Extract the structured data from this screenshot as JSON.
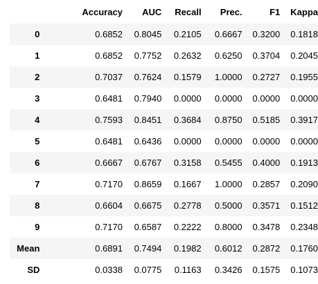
{
  "table": {
    "columns": [
      "",
      "Accuracy",
      "AUC",
      "Recall",
      "Prec.",
      "F1",
      "Kappa"
    ],
    "rows": [
      {
        "index": "0",
        "values": [
          "0.6852",
          "0.8045",
          "0.2105",
          "0.6667",
          "0.3200",
          "0.1818"
        ]
      },
      {
        "index": "1",
        "values": [
          "0.6852",
          "0.7752",
          "0.2632",
          "0.6250",
          "0.3704",
          "0.2045"
        ]
      },
      {
        "index": "2",
        "values": [
          "0.7037",
          "0.7624",
          "0.1579",
          "1.0000",
          "0.2727",
          "0.1955"
        ]
      },
      {
        "index": "3",
        "values": [
          "0.6481",
          "0.7940",
          "0.0000",
          "0.0000",
          "0.0000",
          "0.0000"
        ]
      },
      {
        "index": "4",
        "values": [
          "0.7593",
          "0.8451",
          "0.3684",
          "0.8750",
          "0.5185",
          "0.3917"
        ]
      },
      {
        "index": "5",
        "values": [
          "0.6481",
          "0.6436",
          "0.0000",
          "0.0000",
          "0.0000",
          "0.0000"
        ]
      },
      {
        "index": "6",
        "values": [
          "0.6667",
          "0.6767",
          "0.3158",
          "0.5455",
          "0.4000",
          "0.1913"
        ]
      },
      {
        "index": "7",
        "values": [
          "0.7170",
          "0.8659",
          "0.1667",
          "1.0000",
          "0.2857",
          "0.2090"
        ]
      },
      {
        "index": "8",
        "values": [
          "0.6604",
          "0.6675",
          "0.2778",
          "0.5000",
          "0.3571",
          "0.1512"
        ]
      },
      {
        "index": "9",
        "values": [
          "0.7170",
          "0.6587",
          "0.2222",
          "0.8000",
          "0.3478",
          "0.2348"
        ]
      },
      {
        "index": "Mean",
        "values": [
          "0.6891",
          "0.7494",
          "0.1982",
          "0.6012",
          "0.2872",
          "0.1760"
        ]
      },
      {
        "index": "SD",
        "values": [
          "0.0338",
          "0.0775",
          "0.1163",
          "0.3426",
          "0.1575",
          "0.1073"
        ]
      }
    ]
  }
}
